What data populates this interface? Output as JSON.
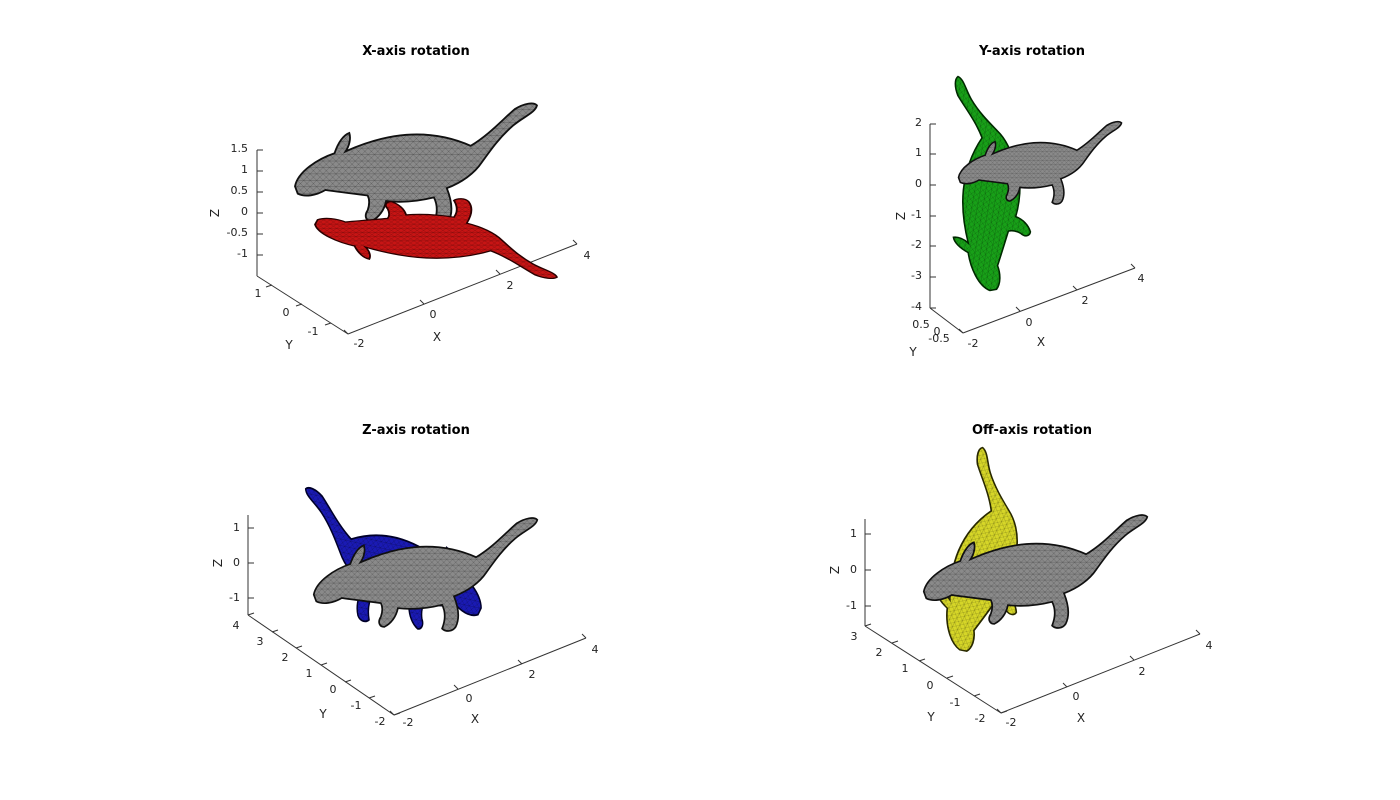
{
  "figure": {
    "background": "#ffffff",
    "panel_count": 4
  },
  "chart_data": [
    {
      "type": "other",
      "plot_kind": "3d-mesh",
      "title": "X-axis rotation",
      "xlabel": "X",
      "ylabel": "Y",
      "zlabel": "Z",
      "x_ticks": [
        "-2",
        "0",
        "2",
        "4"
      ],
      "y_ticks": [
        "1",
        "0",
        "-1"
      ],
      "z_ticks": [
        "1.5",
        "1",
        "0.5",
        "0",
        "-0.5",
        "-1"
      ],
      "meshes": [
        {
          "name": "original",
          "color": "#8a8a8a",
          "edge_color": "#111111"
        },
        {
          "name": "rotated",
          "color": "#c81414",
          "edge_color": "#2a0000"
        }
      ]
    },
    {
      "type": "other",
      "plot_kind": "3d-mesh",
      "title": "Y-axis rotation",
      "xlabel": "X",
      "ylabel": "Y",
      "zlabel": "Z",
      "x_ticks": [
        "-2",
        "0",
        "2",
        "4"
      ],
      "y_ticks": [
        "0.5",
        "0",
        "-0.5"
      ],
      "z_ticks": [
        "2",
        "1",
        "0",
        "-1",
        "-2",
        "-3",
        "-4"
      ],
      "meshes": [
        {
          "name": "original",
          "color": "#8a8a8a",
          "edge_color": "#111111"
        },
        {
          "name": "rotated",
          "color": "#18a018",
          "edge_color": "#002a00"
        }
      ]
    },
    {
      "type": "other",
      "plot_kind": "3d-mesh",
      "title": "Z-axis rotation",
      "xlabel": "X",
      "ylabel": "Y",
      "zlabel": "Z",
      "x_ticks": [
        "-2",
        "0",
        "2",
        "4"
      ],
      "y_ticks": [
        "4",
        "3",
        "2",
        "1",
        "0",
        "-1",
        "-2"
      ],
      "z_ticks": [
        "1",
        "0",
        "-1"
      ],
      "meshes": [
        {
          "name": "original",
          "color": "#8a8a8a",
          "edge_color": "#111111"
        },
        {
          "name": "rotated",
          "color": "#1a1ab4",
          "edge_color": "#00002a"
        }
      ]
    },
    {
      "type": "other",
      "plot_kind": "3d-mesh",
      "title": "Off-axis rotation",
      "xlabel": "X",
      "ylabel": "Y",
      "zlabel": "Z",
      "x_ticks": [
        "-2",
        "0",
        "2",
        "4"
      ],
      "y_ticks": [
        "3",
        "2",
        "1",
        "0",
        "-1",
        "-2"
      ],
      "z_ticks": [
        "1",
        "0",
        "-1"
      ],
      "meshes": [
        {
          "name": "original",
          "color": "#8a8a8a",
          "edge_color": "#111111"
        },
        {
          "name": "rotated",
          "color": "#d6d628",
          "edge_color": "#2a2a00"
        }
      ]
    }
  ]
}
